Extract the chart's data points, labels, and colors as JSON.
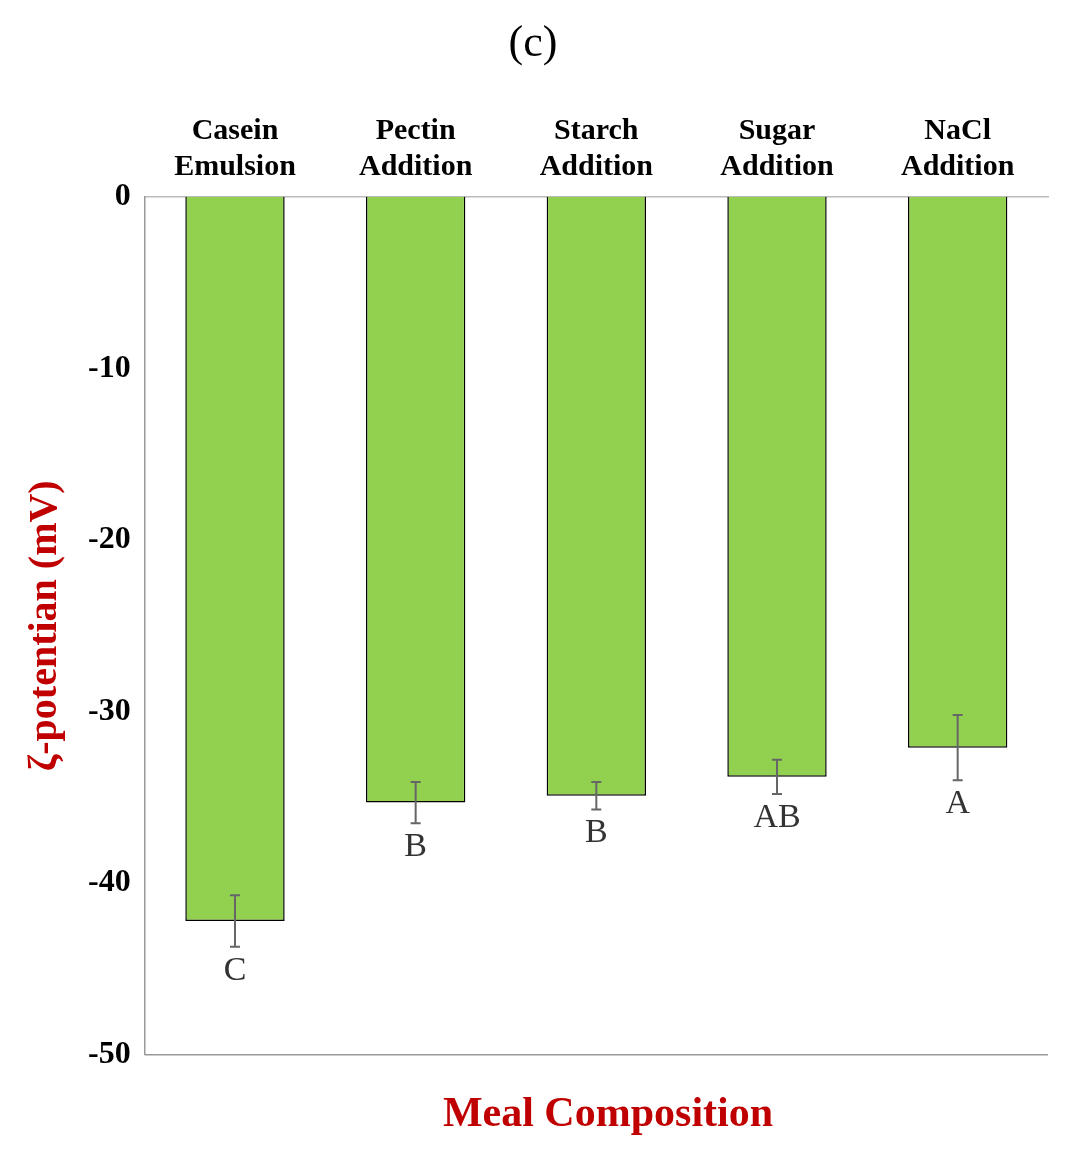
{
  "chart_data": {
    "type": "bar",
    "title": "(c)",
    "xlabel": "Meal Composition",
    "ylabel": "ζ-potentian (mV)",
    "categories": [
      "Casein Emulsion",
      "Pectin Addition",
      "Starch Addition",
      "Sugar Addition",
      "NaCl Addition"
    ],
    "values": [
      -42.2,
      -35.3,
      -34.9,
      -33.8,
      -32.1
    ],
    "errors": [
      1.5,
      1.2,
      0.8,
      1.0,
      1.9
    ],
    "color": "#92d050",
    "ylim": [
      -50,
      0
    ],
    "yticks": [
      -50,
      -40,
      -30,
      -20,
      -10,
      0
    ],
    "grid": false,
    "legend": false,
    "annotations": [
      "C",
      "B",
      "B",
      "AB",
      "A"
    ]
  }
}
